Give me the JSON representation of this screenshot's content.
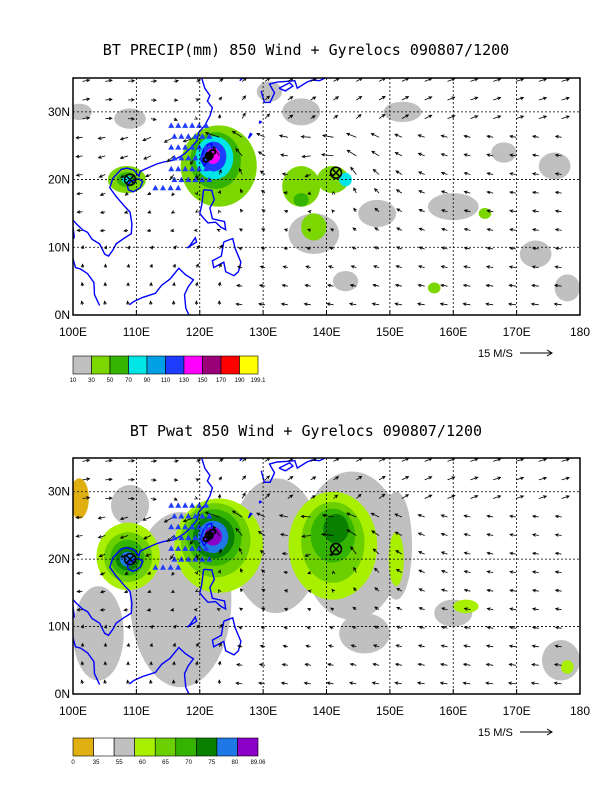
{
  "panels": [
    {
      "title": "BT PRECIP(mm) 850 Wind + Gyrelocs 090807/1200",
      "x_ticks": [
        "100E",
        "110E",
        "120E",
        "130E",
        "140E",
        "150E",
        "160E",
        "170E",
        "180"
      ],
      "y_ticks": [
        "0N",
        "10N",
        "20N",
        "30N"
      ],
      "scale_label": "15 M/S",
      "colorbar_labels": [
        "10",
        "30",
        "50",
        "70",
        "90",
        "110",
        "130",
        "150",
        "170",
        "190",
        "199.1"
      ],
      "colorbar_colors": [
        "#c0c0c0",
        "#7cd600",
        "#34b400",
        "#00e6e6",
        "#00a0e6",
        "#1e3cff",
        "#ff00ff",
        "#9a0078",
        "#ff0000",
        "#ffff00"
      ],
      "gyre_centers": [
        {
          "lon": 109,
          "lat": 20
        },
        {
          "lon": 141.5,
          "lat": 21
        }
      ],
      "typhoon_center": {
        "lon": 121.5,
        "lat": 23.5
      }
    },
    {
      "title": "BT Pwat 850 Wind + Gyrelocs 090807/1200",
      "x_ticks": [
        "100E",
        "110E",
        "120E",
        "130E",
        "140E",
        "150E",
        "160E",
        "170E",
        "180"
      ],
      "y_ticks": [
        "0N",
        "10N",
        "20N",
        "30N"
      ],
      "scale_label": "15 M/S",
      "colorbar_labels": [
        "0",
        "35",
        "55",
        "60",
        "65",
        "70",
        "75",
        "80",
        "89.06"
      ],
      "colorbar_colors": [
        "#e0b010",
        "#ffffff",
        "#c0c0c0",
        "#a8f000",
        "#6cd000",
        "#34b400",
        "#0a8000",
        "#1e78e6",
        "#8a00c8"
      ],
      "gyre_centers": [
        {
          "lon": 109,
          "lat": 20
        },
        {
          "lon": 141.5,
          "lat": 21.5
        }
      ],
      "typhoon_center": {
        "lon": 121.5,
        "lat": 23.5
      }
    }
  ],
  "colors": {
    "coastline": "#0000ff",
    "grid": "#000000",
    "frame": "#000000"
  }
}
